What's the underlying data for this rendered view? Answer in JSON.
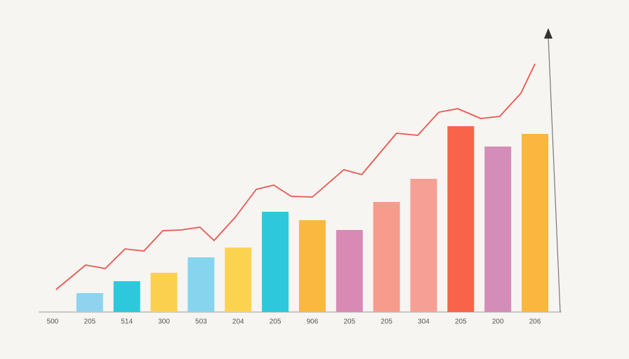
{
  "chart_data": {
    "type": "bar",
    "categories": [
      "500",
      "205",
      "514",
      "300",
      "503",
      "204",
      "205",
      "906",
      "205",
      "205",
      "304",
      "205",
      "200",
      "206"
    ],
    "ylim": [
      0,
      400
    ],
    "series": [
      {
        "type": "bar",
        "values": [
          null,
          27,
          44,
          56,
          78,
          92,
          143,
          131,
          117,
          157,
          190,
          265,
          236,
          254
        ],
        "colors": [
          null,
          "#8fd3ef",
          "#2ec8dd",
          "#fbd04e",
          "#87d4ef",
          "#fbd34f",
          "#2ec8dd",
          "#fbb840",
          "#d88ab5",
          "#f79c8c",
          "#f6a095",
          "#f8634a",
          "#d48cb8",
          "#fbb63f"
        ]
      },
      {
        "type": "line",
        "color": "#e8574f",
        "x": [
          0.09,
          0.89,
          1.42,
          1.95,
          2.46,
          2.97,
          3.46,
          3.97,
          4.35,
          4.92,
          5.49,
          5.96,
          6.43,
          7.0,
          7.85,
          8.33,
          9.27,
          9.84,
          10.41,
          10.92,
          11.54,
          12.05,
          12.62,
          13.0
        ],
        "values": [
          32,
          67,
          62,
          90,
          87,
          116,
          117,
          121,
          102,
          135,
          175,
          181,
          165,
          164,
          203,
          196,
          255,
          252,
          285,
          290,
          276,
          279,
          312,
          354
        ]
      }
    ]
  }
}
